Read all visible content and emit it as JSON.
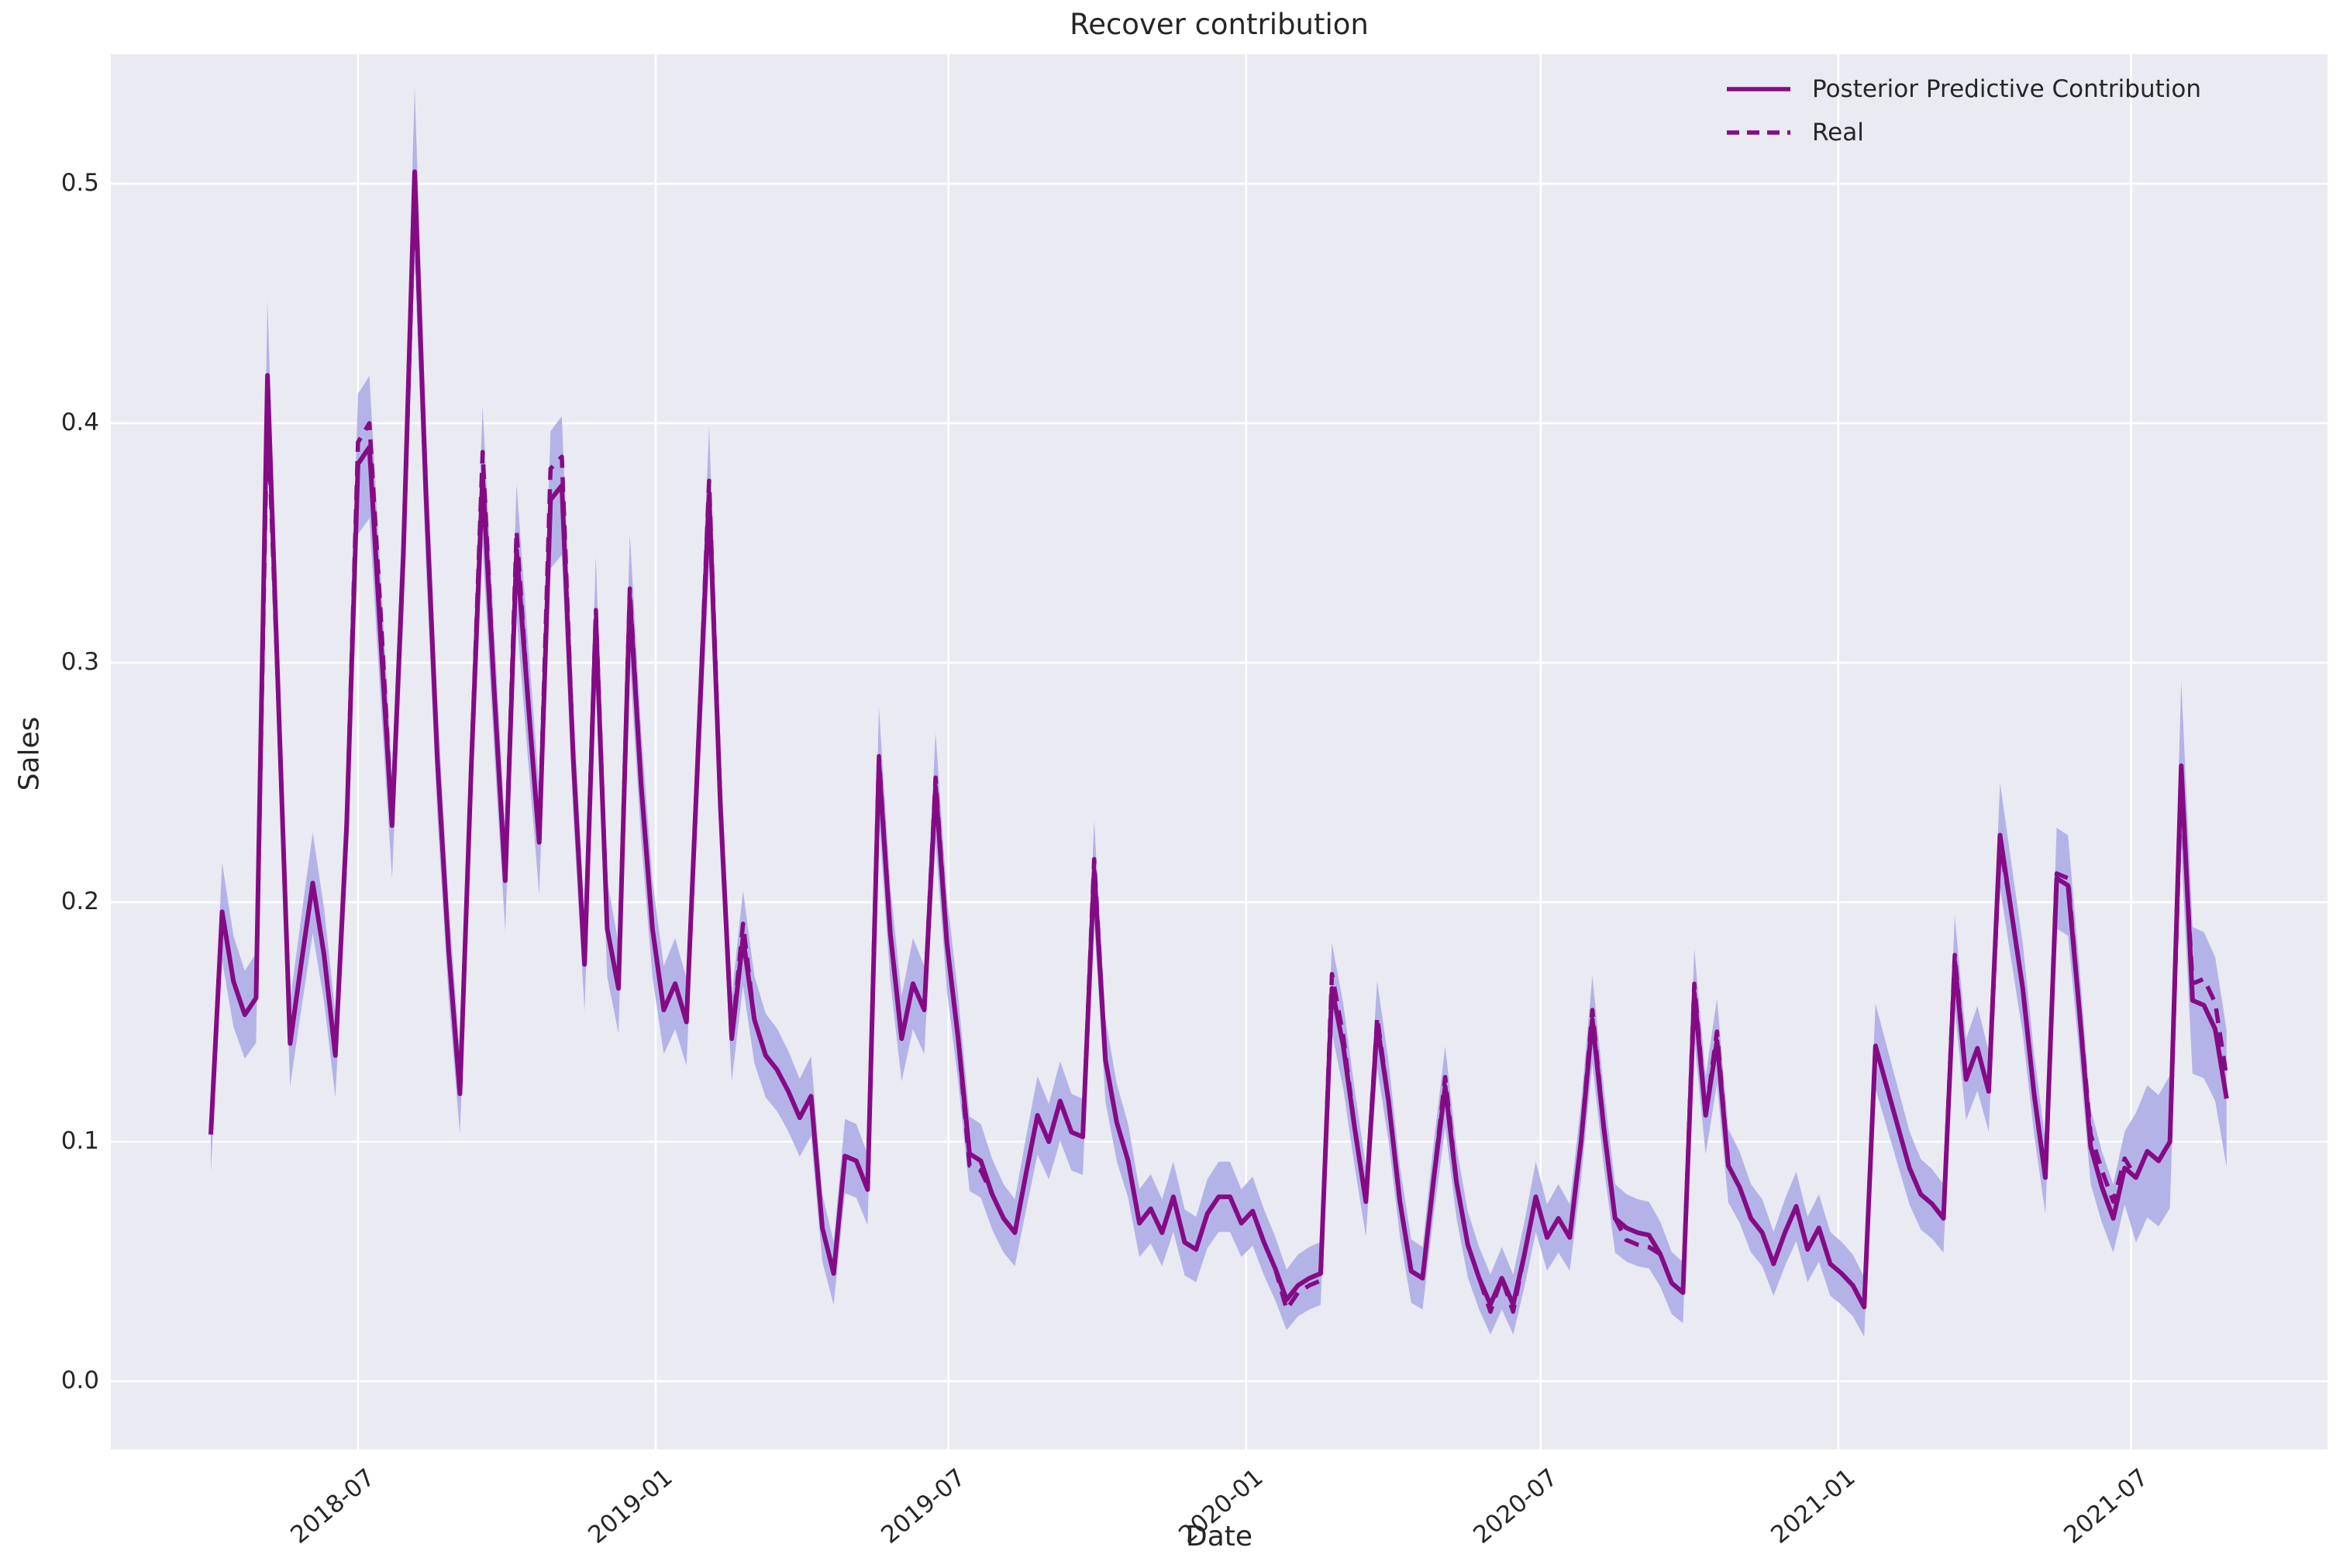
{
  "figure": {
    "title": "Recover contribution",
    "xlabel": "Date",
    "ylabel": "Sales",
    "colors": {
      "background": "#ffffff",
      "plot_background": "#eaeaf2",
      "grid": "#ffffff",
      "text": "#262626",
      "line": "#850b85",
      "hdi_band": "#b4b3e8"
    }
  },
  "legend": {
    "items": [
      {
        "label": "Posterior Predictive Contribution",
        "style": "solid"
      },
      {
        "label": "Real",
        "style": "dashed"
      }
    ]
  },
  "chart_data": {
    "type": "line",
    "title": "Recover contribution",
    "xlabel": "Date",
    "ylabel": "Sales",
    "x_start_date": "2018-04-01",
    "x_end_date": "2021-08-29",
    "x_step_days": 7,
    "n_points": 179,
    "x_tick_labels": [
      "2018-07",
      "2019-01",
      "2019-07",
      "2020-01",
      "2020-07",
      "2021-01",
      "2021-07"
    ],
    "x_tick_dates": [
      "2018-07-01",
      "2019-01-01",
      "2019-07-01",
      "2020-01-01",
      "2020-07-01",
      "2021-01-01",
      "2021-07-01"
    ],
    "yticks": [
      0.0,
      0.1,
      0.2,
      0.3,
      0.4,
      0.5
    ],
    "ylim": [
      -0.0285,
      0.554
    ],
    "grid": true,
    "legend_position": "upper right",
    "series": [
      {
        "name": "Posterior Predictive Contribution",
        "style": "solid",
        "values": [
          0.103,
          0.196,
          0.167,
          0.153,
          0.16,
          0.42,
          0.28,
          0.141,
          0.175,
          0.208,
          0.178,
          0.136,
          0.232,
          0.383,
          0.39,
          0.31,
          0.232,
          0.345,
          0.505,
          0.37,
          0.26,
          0.18,
          0.12,
          0.257,
          0.378,
          0.29,
          0.209,
          0.347,
          0.285,
          0.225,
          0.368,
          0.374,
          0.26,
          0.174,
          0.318,
          0.189,
          0.164,
          0.327,
          0.249,
          0.189,
          0.155,
          0.166,
          0.15,
          0.26,
          0.37,
          0.24,
          0.143,
          0.185,
          0.151,
          0.136,
          0.13,
          0.121,
          0.11,
          0.119,
          0.064,
          0.045,
          0.094,
          0.092,
          0.08,
          0.258,
          0.187,
          0.143,
          0.166,
          0.155,
          0.248,
          0.183,
          0.143,
          0.095,
          0.092,
          0.078,
          0.068,
          0.062,
          0.087,
          0.111,
          0.1,
          0.117,
          0.104,
          0.102,
          0.213,
          0.134,
          0.108,
          0.092,
          0.066,
          0.072,
          0.062,
          0.077,
          0.058,
          0.055,
          0.07,
          0.077,
          0.077,
          0.066,
          0.071,
          0.058,
          0.047,
          0.034,
          0.04,
          0.043,
          0.045,
          0.164,
          0.14,
          0.106,
          0.075,
          0.149,
          0.117,
          0.075,
          0.046,
          0.043,
          0.085,
          0.123,
          0.083,
          0.057,
          0.043,
          0.032,
          0.043,
          0.032,
          0.053,
          0.077,
          0.06,
          0.068,
          0.06,
          0.1,
          0.151,
          0.106,
          0.068,
          0.064,
          0.062,
          0.061,
          0.053,
          0.041,
          0.037,
          0.162,
          0.111,
          0.142,
          0.09,
          0.081,
          0.068,
          0.062,
          0.049,
          0.062,
          0.073,
          0.055,
          0.064,
          0.049,
          0.045,
          0.04,
          0.031,
          0.14,
          0.123,
          0.106,
          0.089,
          0.078,
          0.074,
          0.068,
          0.175,
          0.126,
          0.139,
          0.121,
          0.228,
          0.196,
          0.164,
          0.12,
          0.085,
          0.21,
          0.207,
          0.155,
          0.098,
          0.081,
          0.068,
          0.089,
          0.085,
          0.096,
          0.092,
          0.1,
          0.257,
          0.159,
          0.157,
          0.147,
          0.118
        ]
      },
      {
        "name": "Real",
        "style": "dashed",
        "values": [
          0.103,
          0.196,
          0.167,
          0.153,
          0.16,
          0.408,
          0.28,
          0.141,
          0.175,
          0.208,
          0.178,
          0.136,
          0.232,
          0.392,
          0.4,
          0.32,
          0.232,
          0.345,
          0.5,
          0.37,
          0.26,
          0.18,
          0.12,
          0.257,
          0.388,
          0.29,
          0.209,
          0.355,
          0.285,
          0.225,
          0.381,
          0.386,
          0.26,
          0.174,
          0.322,
          0.189,
          0.164,
          0.331,
          0.249,
          0.189,
          0.155,
          0.166,
          0.15,
          0.26,
          0.376,
          0.24,
          0.143,
          0.191,
          0.151,
          0.136,
          0.13,
          0.121,
          0.11,
          0.119,
          0.064,
          0.045,
          0.094,
          0.092,
          0.08,
          0.261,
          0.187,
          0.143,
          0.166,
          0.155,
          0.252,
          0.183,
          0.143,
          0.09,
          0.088,
          0.078,
          0.068,
          0.062,
          0.087,
          0.111,
          0.1,
          0.117,
          0.104,
          0.102,
          0.218,
          0.134,
          0.108,
          0.092,
          0.066,
          0.072,
          0.062,
          0.077,
          0.058,
          0.055,
          0.07,
          0.077,
          0.077,
          0.066,
          0.071,
          0.058,
          0.047,
          0.03,
          0.037,
          0.04,
          0.042,
          0.17,
          0.144,
          0.106,
          0.075,
          0.152,
          0.117,
          0.075,
          0.046,
          0.043,
          0.085,
          0.127,
          0.083,
          0.057,
          0.043,
          0.029,
          0.043,
          0.029,
          0.053,
          0.077,
          0.06,
          0.068,
          0.06,
          0.1,
          0.155,
          0.106,
          0.068,
          0.059,
          0.057,
          0.056,
          0.053,
          0.041,
          0.037,
          0.166,
          0.111,
          0.146,
          0.09,
          0.081,
          0.068,
          0.062,
          0.049,
          0.062,
          0.073,
          0.055,
          0.064,
          0.049,
          0.045,
          0.04,
          0.031,
          0.14,
          0.123,
          0.106,
          0.089,
          0.078,
          0.074,
          0.068,
          0.178,
          0.126,
          0.139,
          0.121,
          0.225,
          0.196,
          0.164,
          0.12,
          0.085,
          0.212,
          0.21,
          0.155,
          0.103,
          0.088,
          0.075,
          0.093,
          0.085,
          0.096,
          0.092,
          0.1,
          0.25,
          0.166,
          0.168,
          0.158,
          0.127
        ]
      }
    ],
    "hdi_band": {
      "around_series": "Posterior Predictive Contribution",
      "halfwidth_base": 0.011,
      "halfwidth_scale": 0.048,
      "tail_extra": 0.012,
      "tail_start_index": 170
    }
  }
}
